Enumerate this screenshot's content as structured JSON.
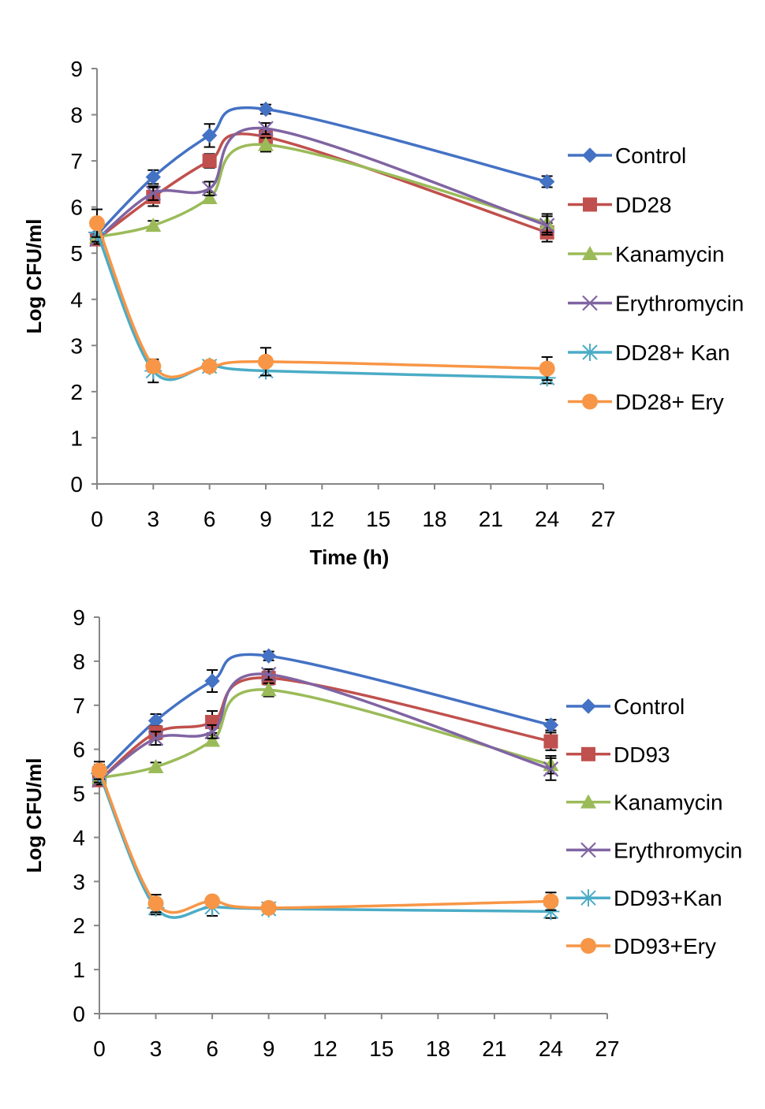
{
  "chart_data": [
    {
      "type": "line",
      "title": "",
      "xlabel": "Time (h)",
      "ylabel": "Log CFU/ml",
      "xlim": [
        0,
        27
      ],
      "ylim": [
        0,
        9
      ],
      "xticks": [
        "0",
        "3",
        "6",
        "9",
        "12",
        "15",
        "18",
        "21",
        "24",
        "27"
      ],
      "yticks": [
        "0",
        "1",
        "2",
        "3",
        "4",
        "5",
        "6",
        "7",
        "8",
        "9"
      ],
      "x": [
        0,
        3,
        6,
        9,
        24
      ],
      "legend_position": "right",
      "series": [
        {
          "name": "Control",
          "color": "#4472C4",
          "marker": "diamond",
          "values": [
            5.4,
            6.65,
            7.55,
            8.12,
            6.55
          ],
          "errors": [
            0.15,
            0.15,
            0.25,
            0.1,
            0.12
          ]
        },
        {
          "name": "DD28",
          "color": "#C0504D",
          "marker": "square",
          "values": [
            5.3,
            6.22,
            7.0,
            7.52,
            5.45
          ],
          "errors": [
            0.1,
            0.2,
            0.15,
            0.15,
            0.2
          ]
        },
        {
          "name": "Kanamycin",
          "color": "#9BBB59",
          "marker": "triangle",
          "values": [
            5.35,
            5.6,
            6.2,
            7.35,
            5.65
          ],
          "errors": [
            0.1,
            0.1,
            0.12,
            0.15,
            0.2
          ]
        },
        {
          "name": "Erythromycin",
          "color": "#8064A2",
          "marker": "x",
          "values": [
            5.3,
            6.3,
            6.4,
            7.7,
            5.6
          ],
          "errors": [
            0.1,
            0.15,
            0.15,
            0.12,
            0.2
          ]
        },
        {
          "name": "DD28+ Kan",
          "color": "#4BACC6",
          "marker": "star",
          "values": [
            5.45,
            2.45,
            2.55,
            2.45,
            2.3
          ],
          "errors": [
            0.2,
            0.25,
            0.1,
            0.1,
            0.12
          ]
        },
        {
          "name": "DD28+ Ery",
          "color": "#F79646",
          "marker": "circle",
          "values": [
            5.65,
            2.55,
            2.55,
            2.65,
            2.5
          ],
          "errors": [
            0.3,
            0.12,
            0.1,
            0.3,
            0.25
          ]
        }
      ]
    },
    {
      "type": "line",
      "title": "",
      "xlabel": "",
      "ylabel": "Log CFU/ml",
      "xlim": [
        0,
        27
      ],
      "ylim": [
        0,
        9
      ],
      "xticks": [
        "0",
        "3",
        "6",
        "9",
        "12",
        "15",
        "18",
        "21",
        "24",
        "27"
      ],
      "yticks": [
        "0",
        "1",
        "2",
        "3",
        "4",
        "5",
        "6",
        "7",
        "8",
        "9"
      ],
      "x": [
        0,
        3,
        6,
        9,
        24
      ],
      "legend_position": "right",
      "series": [
        {
          "name": "Control",
          "color": "#4472C4",
          "marker": "diamond",
          "values": [
            5.4,
            6.65,
            7.55,
            8.12,
            6.55
          ],
          "errors": [
            0.15,
            0.15,
            0.25,
            0.1,
            0.12
          ]
        },
        {
          "name": "DD93",
          "color": "#C0504D",
          "marker": "square",
          "values": [
            5.3,
            6.38,
            6.62,
            7.62,
            6.18
          ],
          "errors": [
            0.1,
            0.15,
            0.25,
            0.15,
            0.2
          ]
        },
        {
          "name": "Kanamycin",
          "color": "#9BBB59",
          "marker": "triangle",
          "values": [
            5.35,
            5.6,
            6.2,
            7.35,
            5.65
          ],
          "errors": [
            0.1,
            0.1,
            0.12,
            0.15,
            0.2
          ]
        },
        {
          "name": "Erythromycin",
          "color": "#8064A2",
          "marker": "x",
          "values": [
            5.3,
            6.25,
            6.4,
            7.7,
            5.55
          ],
          "errors": [
            0.1,
            0.15,
            0.15,
            0.12,
            0.25
          ]
        },
        {
          "name": "DD93+Kan",
          "color": "#4BACC6",
          "marker": "star",
          "values": [
            5.45,
            2.4,
            2.42,
            2.38,
            2.32
          ],
          "errors": [
            0.2,
            0.15,
            0.2,
            0.08,
            0.15
          ]
        },
        {
          "name": "DD93+Ery",
          "color": "#F79646",
          "marker": "circle",
          "values": [
            5.52,
            2.5,
            2.55,
            2.4,
            2.55
          ],
          "errors": [
            0.2,
            0.2,
            0.1,
            0.08,
            0.2
          ]
        }
      ]
    }
  ]
}
